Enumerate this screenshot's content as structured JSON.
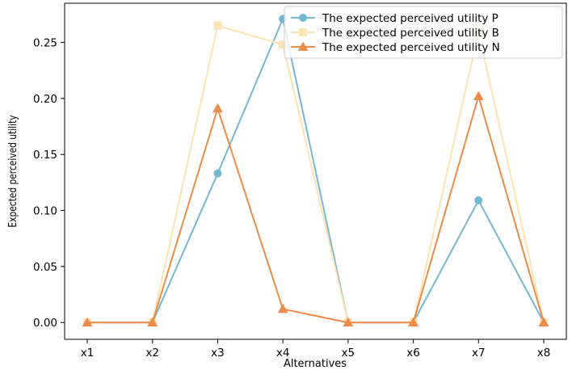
{
  "chart_data": {
    "type": "line",
    "xlabel": "Alternatives",
    "ylabel": "Expected perceived utility",
    "categories": [
      "x1",
      "x2",
      "x3",
      "x4",
      "x5",
      "x6",
      "x7",
      "x8"
    ],
    "ylim": [
      -0.015,
      0.285
    ],
    "yticks": [
      "0.00",
      "0.05",
      "0.10",
      "0.15",
      "0.20",
      "0.25"
    ],
    "ytick_values": [
      0,
      0.05,
      0.1,
      0.15,
      0.2,
      0.25
    ],
    "grid": false,
    "legend_position": "top-right",
    "series": [
      {
        "name": "The expected perceived utility P",
        "color": "#74b8d1",
        "marker": "circle",
        "values": [
          0,
          0,
          0.133,
          0.271,
          0,
          0,
          0.109,
          0
        ]
      },
      {
        "name": "The expected perceived utility B",
        "color": "#fde3b0",
        "marker": "square",
        "values": [
          0,
          0,
          0.265,
          0.248,
          0,
          0,
          0.259,
          0
        ]
      },
      {
        "name": "The expected perceived utility N",
        "color": "#ec8b4a",
        "marker": "triangle",
        "values": [
          0,
          0,
          0.191,
          0.012,
          0,
          0,
          0.202,
          0
        ]
      }
    ]
  }
}
